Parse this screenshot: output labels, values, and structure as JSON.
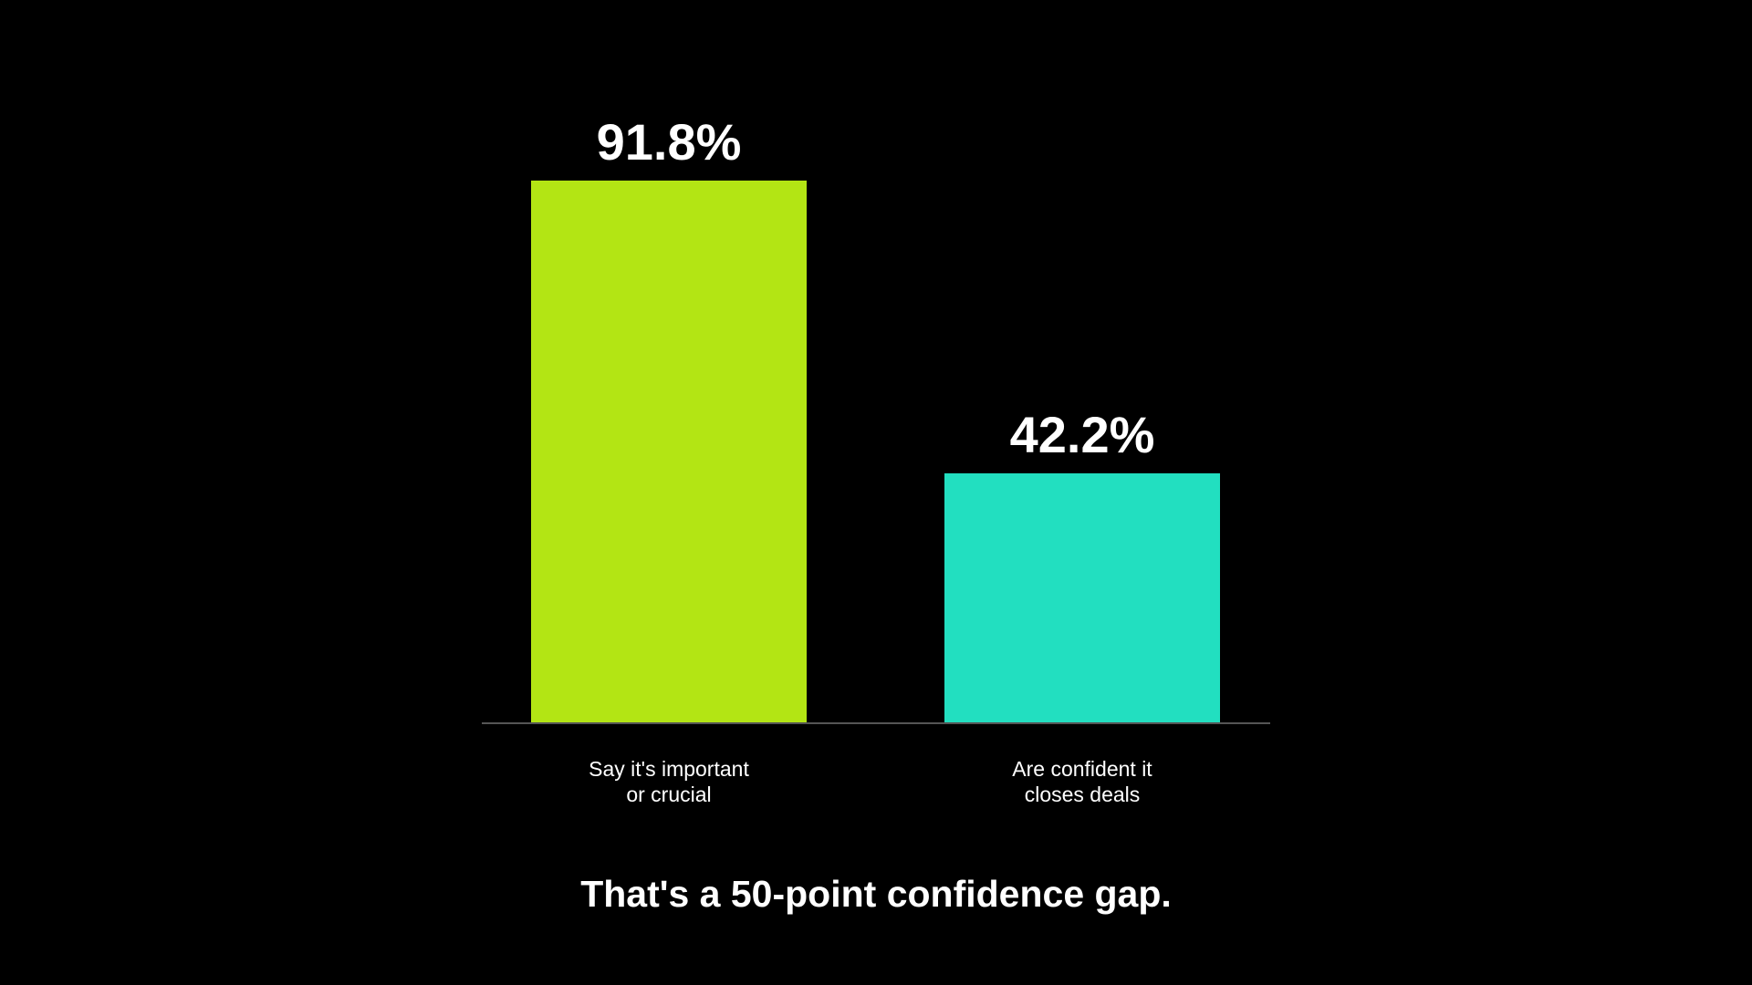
{
  "chart_data": {
    "type": "bar",
    "categories": [
      "Say it's important\nor crucial",
      "Are confident it\ncloses deals"
    ],
    "series": [
      {
        "name": null,
        "values": [
          91.8,
          42.2
        ],
        "value_labels": [
          "91.8%",
          "42.2%"
        ],
        "colors": [
          "#b3e514",
          "#22dfc0"
        ]
      }
    ],
    "ylim": [
      0,
      100
    ],
    "annotation": "That's a 50-point confidence gap."
  }
}
